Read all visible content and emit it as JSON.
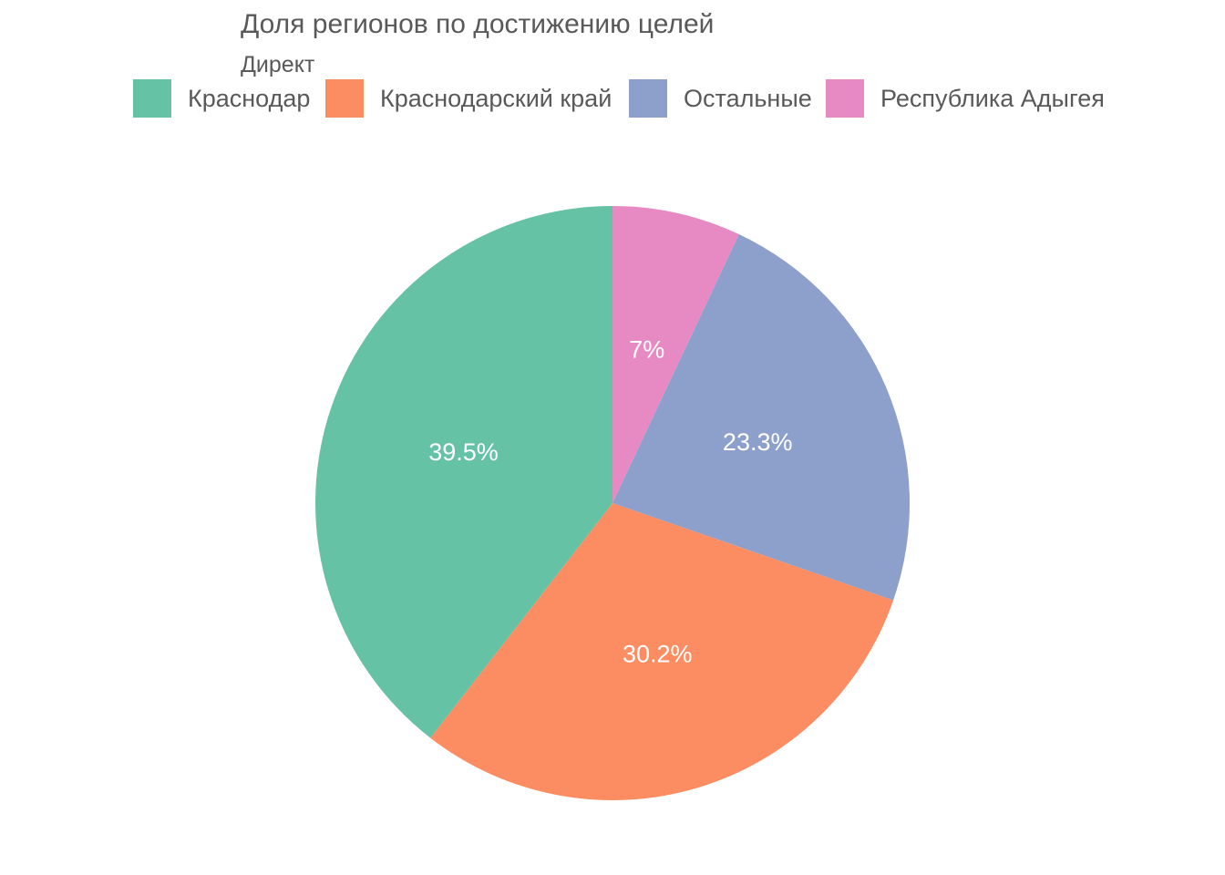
{
  "chart_data": {
    "type": "pie",
    "title": "Доля регионов по достижению целей",
    "legend_title": "Директ",
    "legend_position": "top",
    "direction": "clockwise",
    "start": "top",
    "slices": [
      {
        "name": "Республика Адыгея",
        "value": 7.0,
        "label": "7%",
        "color": "#e78ac3"
      },
      {
        "name": "Остальные",
        "value": 23.3,
        "label": "23.3%",
        "color": "#8da0cb"
      },
      {
        "name": "Краснодарский край",
        "value": 30.2,
        "label": "30.2%",
        "color": "#fc8d62"
      },
      {
        "name": "Краснодар",
        "value": 39.5,
        "label": "39.5%",
        "color": "#66c2a5"
      }
    ],
    "legend": [
      {
        "name": "Краснодар",
        "color": "#66c2a5"
      },
      {
        "name": "Краснодарский край",
        "color": "#fc8d62"
      },
      {
        "name": "Остальные",
        "color": "#8da0cb"
      },
      {
        "name": "Республика Адыгея",
        "color": "#e78ac3"
      }
    ]
  }
}
